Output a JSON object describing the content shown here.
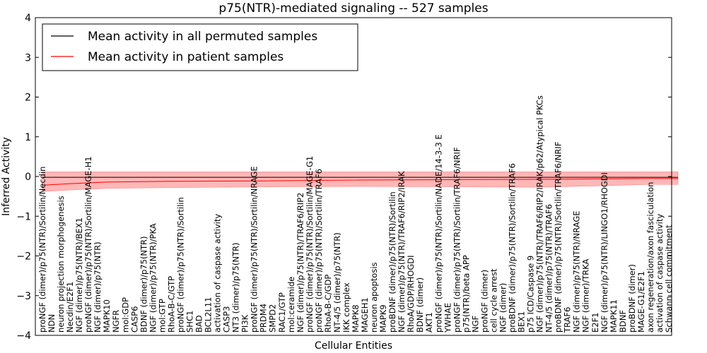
{
  "chart_data": {
    "type": "line",
    "title": "p75(NTR)-mediated signaling -- 527 samples",
    "xlabel": "Cellular Entities",
    "ylabel": "Inferred Activity",
    "ylim": [
      -4,
      4
    ],
    "yticks": [
      "4",
      "3",
      "2",
      "1",
      "0",
      "−1",
      "−2",
      "−3",
      "−4"
    ],
    "grid": false,
    "legend_position": "top-left",
    "legend": [
      {
        "label": "Mean activity in all permuted samples",
        "color": "#000000"
      },
      {
        "label": "Mean activity in patient samples",
        "color": "#ff0000"
      }
    ],
    "band_color": "#ff9999",
    "x_entities": [
      "proNGF (dimer)/p75(NTR)/Sortilin/Necdin",
      "NDN",
      "neuron projection morphogenesis",
      "Necdin/E2F1",
      "NGF (dimer)/p75(NTR)/BEX1",
      "proNGF (dimer)/p75(NTR)/Sortilin/MAGE-H1",
      "NGF (dimer)/p75(NTR)",
      "MAPK10",
      "NGFR",
      "mol:GDP",
      "CASP6",
      "BDNF (dimer)/p75(NTR)",
      "NGF (dimer)/p75(NTR)/PKA",
      "mol:GTP",
      "RhoA-B-C/GTP",
      "proNGF (dimer)/p75(NTR)/Sortilin",
      "SHC1",
      "BAD",
      "BCL2L11",
      "activation of caspase activity",
      "CASP3",
      "NT3 (dimer)/p75(NTR)",
      "PI3K",
      "proNGF (dimer)/p75(NTR)/Sortilin/NRAGE",
      "PRDM4",
      "SMPD2",
      "RAC1/GTP",
      "mol:ceramide",
      "NGF (dimer)/p75(NTR)/TRAF6/RIP2",
      "proNGF (dimer)/p75(NTR)/Sortilin/MAGE-G1",
      "proNGF (dimer)/p75(NTR)/Sortilin/TRAF6",
      "RhoA-B-C/GDP",
      "NT-4/5 (dimer)/p75(NTR)",
      "IKK complex",
      "MAPK8",
      "MAGEH1",
      "neuron apoptosis",
      "MAPK9",
      "proBDNF (dimer)/p75(NTR)/Sortilin",
      "NGF (dimer)/p75(NTR)/TRAF6/RIP2/IRAK",
      "RhoA/GDP/RHOGDI",
      "BDNF (dimer)",
      "AKT1",
      "proNGF (dimer)/p75(NTR)/Sortilin/NADE/14-3-3 E",
      "YWHAE",
      "proNGF (dimer)/p75(NTR)/Sortilin/TRAF6/NRIF",
      "p75(NTR)/beta APP",
      "NGF",
      "proNGF (dimer)",
      "cell cycle arrest",
      "NGF (dimer)",
      "proBDNF (dimer)/p75(NTR)/Sortilin/TRAF6",
      "BEX1",
      "p75 ICD/Caspase 9",
      "NGF (dimer)/p75(NTR)/TRAF6/RIP2/IRAK/p62/Atypical PKCs",
      "NT-4/5 (dimer)/p75(NTR)/TRAF6",
      "proBDNF (dimer)/p75(NTR)/Sortilin/TRAF6/NRIF",
      "TRAF6",
      "NGF (dimer)/p75(NTR)/NRAGE",
      "NGF (dimer)/TRKA",
      "E2F1",
      "NGF (dimer)/p75(NTR)/LINGO1/RHOGDI",
      "MAPK11",
      "BDNF",
      "proBDNF (dimer)",
      "MAGE-G1/E2F1",
      "axon regeneration/axon fasciculation",
      "activation of caspase activity",
      "Schwann cell commitment"
    ],
    "series": [
      {
        "name": "Mean activity in all permuted samples",
        "color": "#000000",
        "x": [
          1,
          70
        ],
        "y": [
          -0.02,
          -0.02
        ]
      },
      {
        "name": "Mean activity in patient samples",
        "color": "#ff0000",
        "x": [
          1,
          4,
          8,
          15,
          25,
          35,
          45,
          55,
          62,
          67,
          70
        ],
        "y": [
          -0.22,
          -0.18,
          -0.14,
          -0.12,
          -0.11,
          -0.09,
          -0.08,
          -0.07,
          -0.06,
          -0.05,
          -0.05
        ],
        "band_upper": [
          0.12,
          0.12,
          0.12,
          0.12,
          0.12,
          0.12,
          0.12,
          0.12,
          0.12,
          0.12,
          0.12
        ],
        "band_lower": [
          -0.38,
          -0.34,
          -0.3,
          -0.28,
          -0.26,
          -0.25,
          -0.26,
          -0.27,
          -0.23,
          -0.2,
          -0.2
        ]
      }
    ]
  }
}
